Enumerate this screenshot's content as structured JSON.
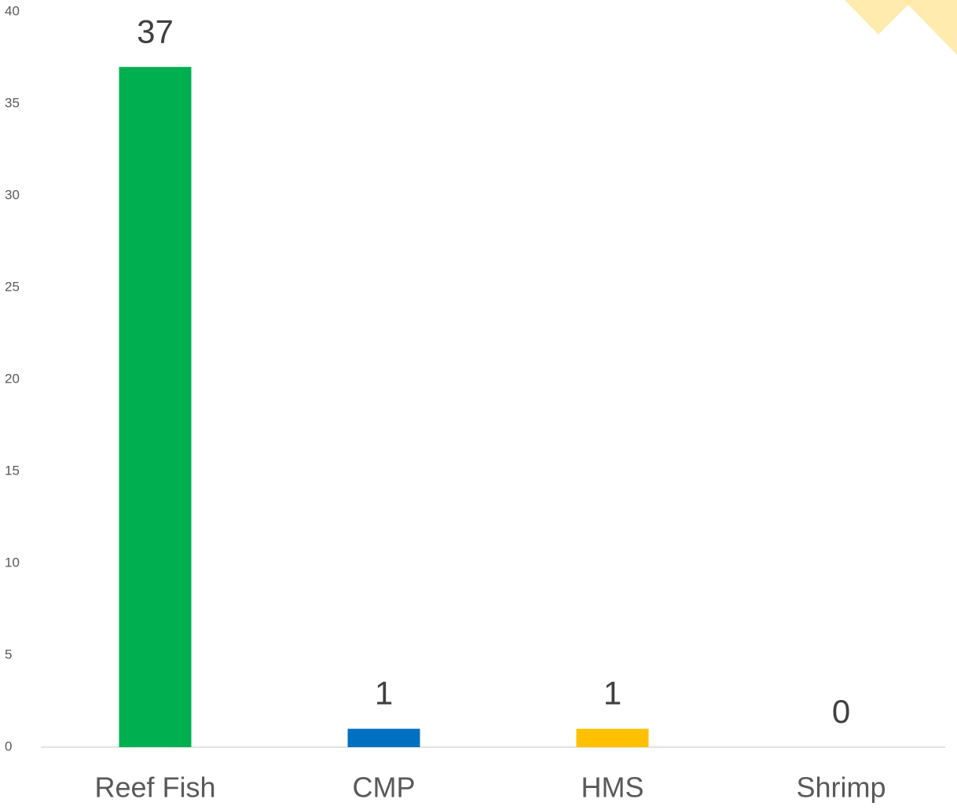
{
  "chart_data": {
    "type": "bar",
    "categories": [
      "Reef Fish",
      "CMP",
      "HMS",
      "Shrimp"
    ],
    "values": [
      37,
      1,
      1,
      0
    ],
    "colors": [
      "#00b050",
      "#0070c0",
      "#ffc000",
      "#7f7f7f"
    ],
    "ylim": [
      0,
      40
    ],
    "yticks": [
      0,
      5,
      10,
      15,
      20,
      25,
      30,
      35,
      40
    ],
    "grid": false
  }
}
